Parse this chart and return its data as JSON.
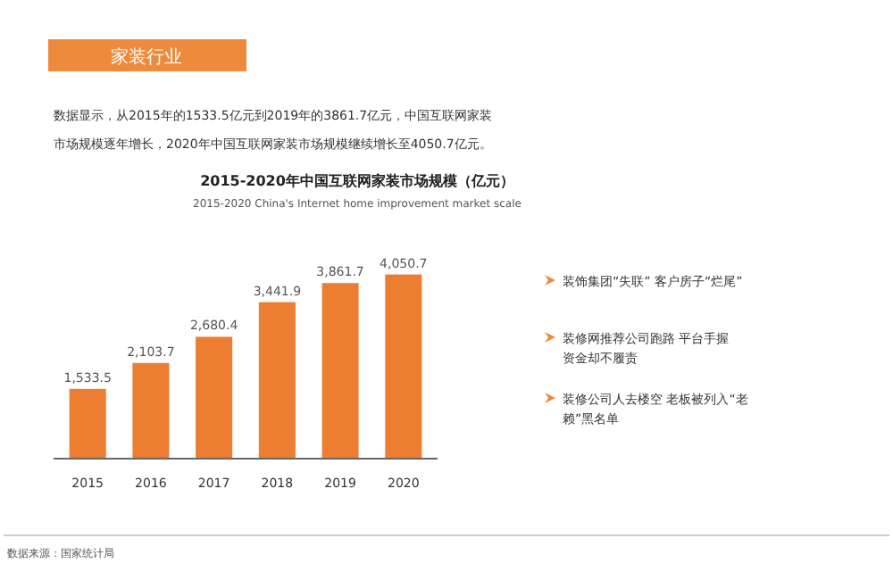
{
  "chart_data": {
    "type": "bar",
    "title": "2015-2020年中国互联网家装市场规模（亿元）",
    "subtitle": "2015-2020 China's Internet home improvement market scale",
    "categories": [
      "2015",
      "2016",
      "2017",
      "2018",
      "2019",
      "2020"
    ],
    "values": [
      1533.5,
      2103.7,
      2680.4,
      3441.9,
      3861.7,
      4050.7
    ],
    "value_labels": [
      "1,533.5",
      "2,103.7",
      "2,680.4",
      "3,441.9",
      "3,861.7",
      "4,050.7"
    ],
    "color": "#ed7d31",
    "annotations": [
      "家装行业",
      "数据显示，从2015年的1533.5亿元到2019年的3861.7亿元，中国互联网家装",
      "市场规模逐年增长，2020年中国互联网家装市场规模继续增长至4050.7亿元。",
      "数据来源：国家统计局",
      "装饰集团“失联” 客户房子“烂尾”",
      "装修网推荐公司跑路 平台手握",
      "资金却不履责",
      "装修公司人去楼空 老板被列入“老",
      "赖”黑名单"
    ]
  }
}
